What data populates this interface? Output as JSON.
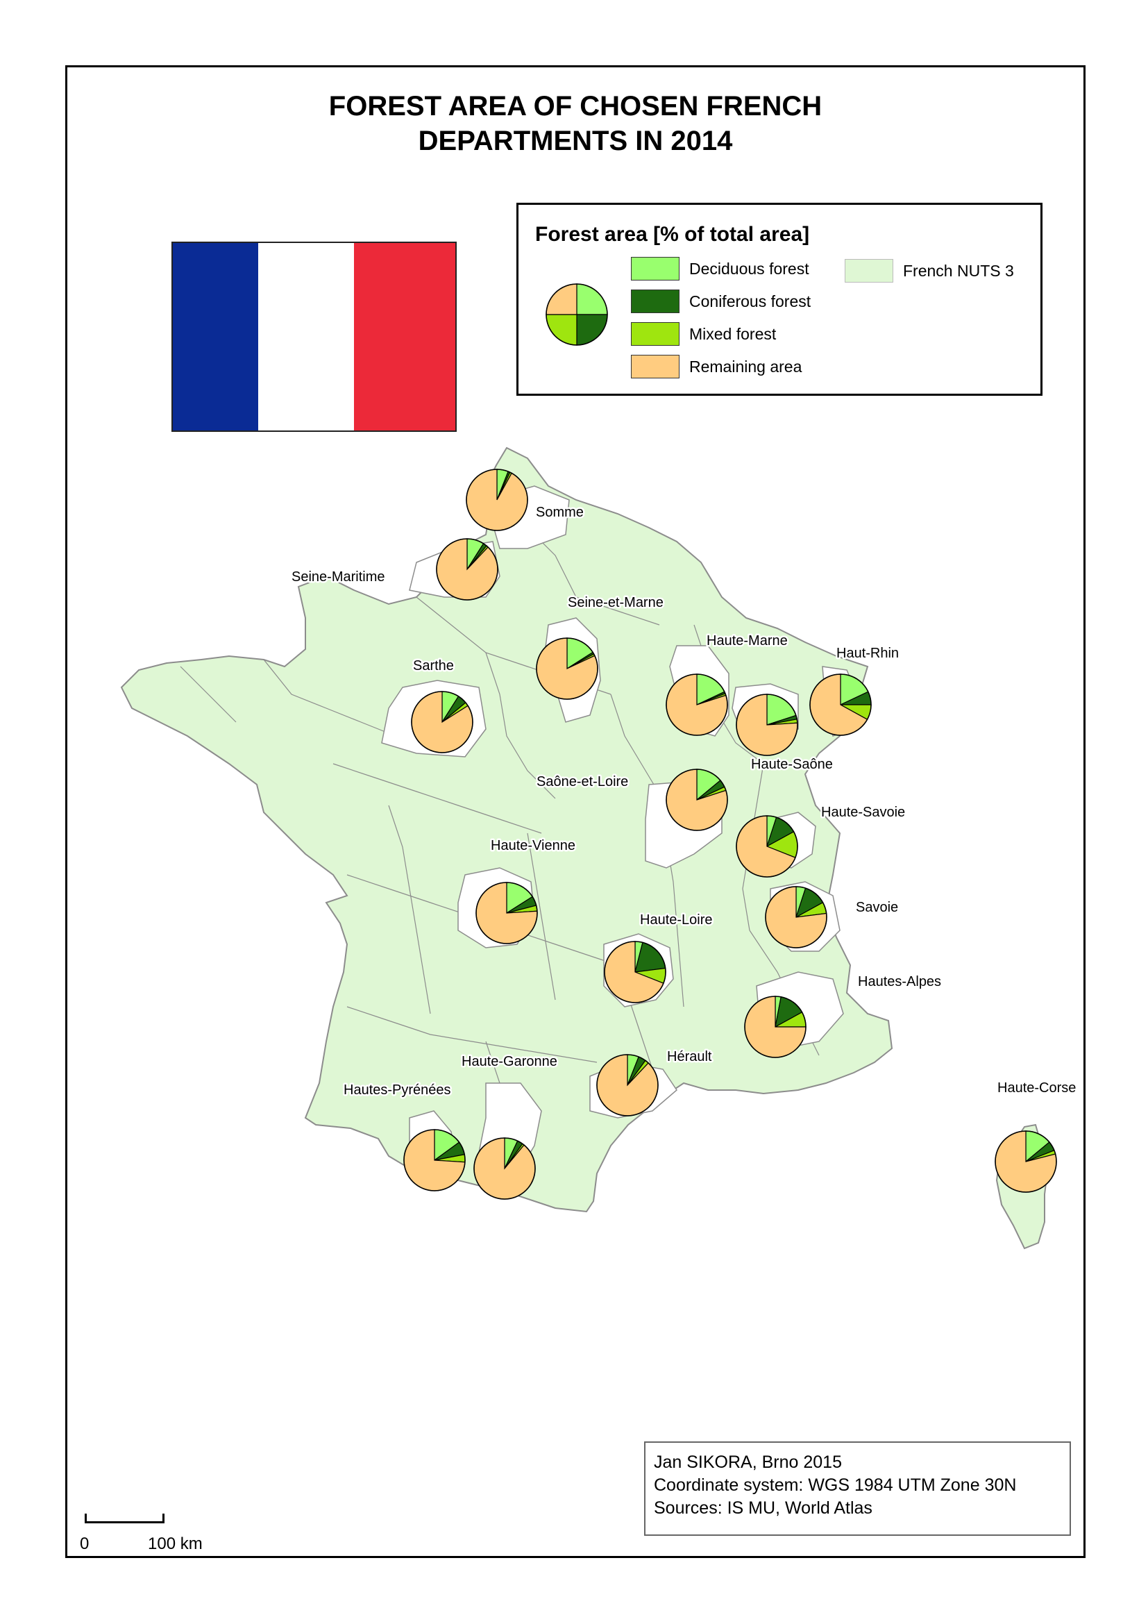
{
  "title": {
    "line1": "FOREST AREA OF CHOSEN FRENCH",
    "line2": "DEPARTMENTS IN 2014"
  },
  "flag": {
    "colors": [
      "#0a2b95",
      "#ffffff",
      "#ec2939"
    ]
  },
  "legend": {
    "title": "Forest area [% of total area]",
    "items": [
      {
        "label": "Deciduous forest",
        "color": "#99ff6e"
      },
      {
        "label": "Coniferous forest",
        "color": "#1e6b10"
      },
      {
        "label": "Mixed forest",
        "color": "#9fe50f"
      },
      {
        "label": "Remaining area",
        "color": "#ffcc80"
      }
    ],
    "region": {
      "label": "French NUTS 3",
      "color": "#dff7d4"
    }
  },
  "colors": {
    "region_fill": "#dff7d4",
    "region_border": "#8c8c8c",
    "highlight_fill": "#ffffff"
  },
  "departments": [
    {
      "name": "Somme",
      "deciduous": 6,
      "coniferous": 1,
      "mixed": 1
    },
    {
      "name": "Seine-Maritime",
      "deciduous": 9,
      "coniferous": 2,
      "mixed": 1
    },
    {
      "name": "Seine-et-Marne",
      "deciduous": 16,
      "coniferous": 1,
      "mixed": 1
    },
    {
      "name": "Sarthe",
      "deciduous": 9,
      "coniferous": 5,
      "mixed": 2
    },
    {
      "name": "Haute-Marne",
      "deciduous": 18,
      "coniferous": 1,
      "mixed": 1
    },
    {
      "name": "Haute-Saône",
      "deciduous": 20,
      "coniferous": 2,
      "mixed": 2
    },
    {
      "name": "Haut-Rhin",
      "deciduous": 18,
      "coniferous": 7,
      "mixed": 8
    },
    {
      "name": "Saône-et-Loire",
      "deciduous": 14,
      "coniferous": 4,
      "mixed": 2
    },
    {
      "name": "Haute-Savoie",
      "deciduous": 5,
      "coniferous": 12,
      "mixed": 14
    },
    {
      "name": "Haute-Vienne",
      "deciduous": 16,
      "coniferous": 5,
      "mixed": 3
    },
    {
      "name": "Savoie",
      "deciduous": 5,
      "coniferous": 12,
      "mixed": 6
    },
    {
      "name": "Haute-Loire",
      "deciduous": 4,
      "coniferous": 19,
      "mixed": 8
    },
    {
      "name": "Hautes-Alpes",
      "deciduous": 3,
      "coniferous": 14,
      "mixed": 8
    },
    {
      "name": "Hérault",
      "deciduous": 6,
      "coniferous": 4,
      "mixed": 2
    },
    {
      "name": "Haute-Garonne",
      "deciduous": 7,
      "coniferous": 3,
      "mixed": 1
    },
    {
      "name": "Hautes-Pyrénées",
      "deciduous": 15,
      "coniferous": 7,
      "mixed": 4
    },
    {
      "name": "Haute-Corse",
      "deciduous": 14,
      "coniferous": 5,
      "mixed": 2
    }
  ],
  "credits": {
    "author": "Jan SIKORA, Brno 2015",
    "crs": "Coordinate system: WGS 1984 UTM Zone 30N",
    "sources": "Sources: IS MU, World Atlas"
  },
  "scale": {
    "start_label": "0",
    "end_label": "100 km"
  }
}
